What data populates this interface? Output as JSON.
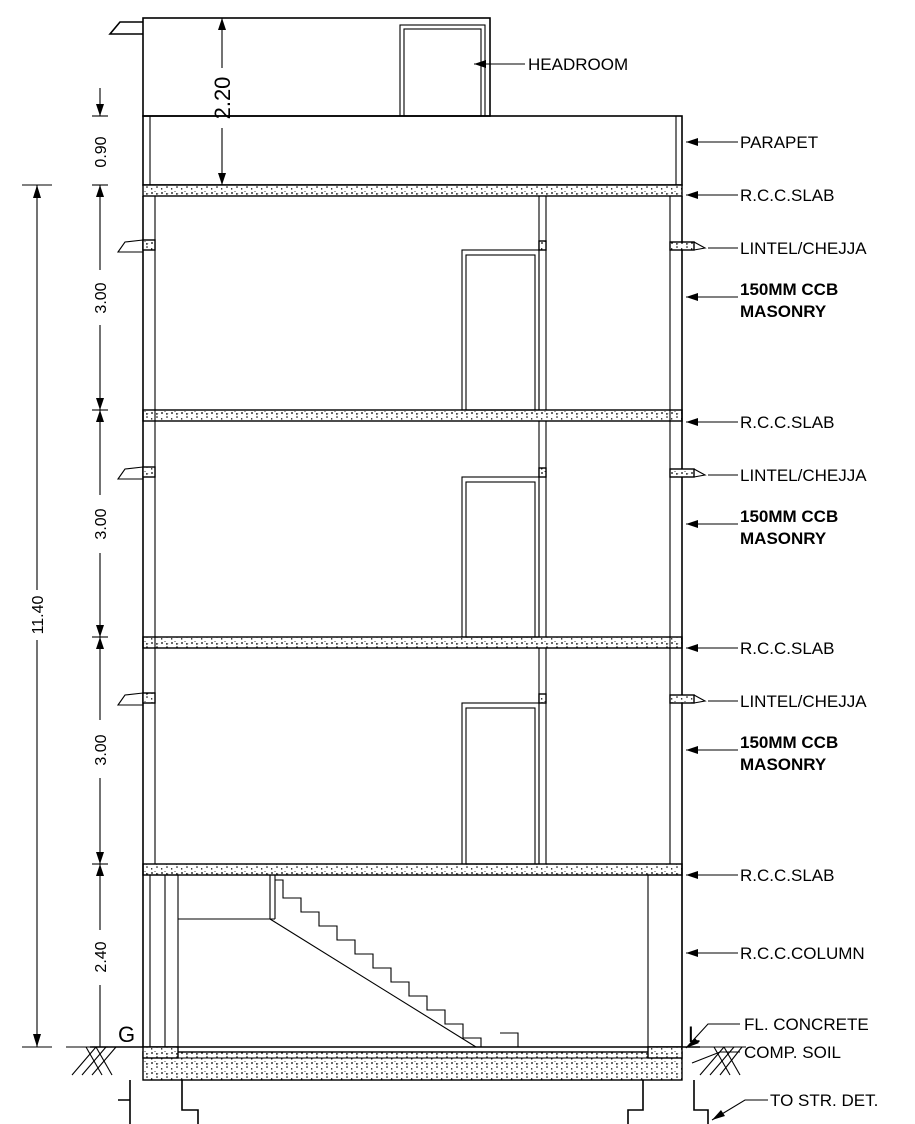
{
  "labels": {
    "headroom": "HEADROOM",
    "parapet": "PARAPET",
    "slab": "R.C.C.SLAB",
    "lintel": "LINTEL/CHEJJA",
    "masonry_line1": "150MM CCB",
    "masonry_line2": "MASONRY",
    "column": "R.C.C.COLUMN",
    "fl_concrete": "FL. CONCRETE",
    "comp_soil": "COMP. SOIL",
    "to_str_det": "TO STR. DET."
  },
  "dimensions": {
    "total_height": "11.40",
    "parapet_height": "0.90",
    "headroom_height": "2.20",
    "floor_heights": [
      "3.00",
      "3.00",
      "3.00",
      "2.40"
    ]
  },
  "level_markers": {
    "left": "G",
    "right": "L"
  }
}
